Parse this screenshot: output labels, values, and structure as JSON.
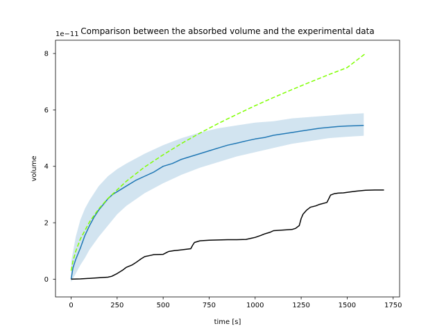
{
  "chart_data": {
    "type": "line",
    "title": "Comparison between the absorbed volume and the experimental data",
    "xlabel": "time [s]",
    "ylabel": "volume",
    "y_scale_note": "1e−11",
    "xlim": [
      -85,
      1785
    ],
    "ylim": [
      -0.63,
      8.47
    ],
    "x_ticks": [
      0,
      250,
      500,
      750,
      1000,
      1250,
      1500,
      1750
    ],
    "y_ticks": [
      0,
      2,
      4,
      6,
      8
    ],
    "grid": false,
    "colors": {
      "model": "#1f77b4",
      "band": "#1f77b4",
      "fit": "#7fff00",
      "experiment": "#000000"
    },
    "series": [
      {
        "kind": "band",
        "x": [
          0,
          25,
          50,
          75,
          100,
          150,
          200,
          250,
          300,
          400,
          500,
          600,
          700,
          800,
          900,
          1000,
          1100,
          1200,
          1300,
          1400,
          1500,
          1590
        ],
        "lower": [
          -0.1,
          0.2,
          0.5,
          0.75,
          1.05,
          1.5,
          1.9,
          2.3,
          2.6,
          3.05,
          3.4,
          3.7,
          3.95,
          4.15,
          4.35,
          4.5,
          4.65,
          4.8,
          4.9,
          5.0,
          5.05,
          5.08
        ],
        "upper": [
          0.6,
          1.5,
          2.1,
          2.5,
          2.8,
          3.3,
          3.65,
          3.9,
          4.1,
          4.45,
          4.75,
          5.0,
          5.2,
          5.35,
          5.45,
          5.55,
          5.6,
          5.7,
          5.75,
          5.8,
          5.85,
          5.88
        ]
      },
      {
        "kind": "line",
        "x": [
          0,
          10,
          25,
          50,
          75,
          100,
          125,
          150,
          175,
          200,
          225,
          250,
          300,
          350,
          400,
          450,
          500,
          550,
          600,
          650,
          700,
          750,
          800,
          850,
          900,
          950,
          1000,
          1050,
          1100,
          1150,
          1200,
          1250,
          1300,
          1350,
          1400,
          1450,
          1500,
          1550,
          1590
        ],
        "y": [
          0,
          0.4,
          0.7,
          1.1,
          1.55,
          1.9,
          2.2,
          2.45,
          2.65,
          2.85,
          3.0,
          3.1,
          3.3,
          3.5,
          3.65,
          3.8,
          4.0,
          4.1,
          4.25,
          4.35,
          4.45,
          4.55,
          4.65,
          4.75,
          4.82,
          4.9,
          4.97,
          5.02,
          5.1,
          5.15,
          5.2,
          5.25,
          5.3,
          5.35,
          5.38,
          5.41,
          5.43,
          5.44,
          5.45
        ]
      },
      {
        "kind": "dashed",
        "x": [
          0,
          10,
          25,
          50,
          100,
          150,
          200,
          300,
          400,
          500,
          600,
          700,
          800,
          900,
          1000,
          1100,
          1200,
          1300,
          1400,
          1500,
          1600
        ],
        "y": [
          0.3,
          0.64,
          0.99,
          1.42,
          2.03,
          2.49,
          2.86,
          3.47,
          3.98,
          4.41,
          4.81,
          5.18,
          5.52,
          5.84,
          6.15,
          6.44,
          6.72,
          6.99,
          7.25,
          7.5,
          8.0
        ]
      },
      {
        "kind": "line",
        "x": [
          0,
          50,
          100,
          150,
          200,
          220,
          250,
          280,
          300,
          330,
          350,
          380,
          400,
          430,
          450,
          500,
          520,
          530,
          560,
          600,
          650,
          660,
          670,
          690,
          700,
          720,
          750,
          800,
          850,
          900,
          950,
          980,
          1000,
          1030,
          1050,
          1080,
          1100,
          1150,
          1200,
          1220,
          1240,
          1250,
          1260,
          1280,
          1300,
          1330,
          1350,
          1390,
          1400,
          1410,
          1430,
          1450,
          1480,
          1500,
          1550,
          1600,
          1650,
          1700
        ],
        "y": [
          0,
          0.01,
          0.03,
          0.05,
          0.07,
          0.1,
          0.2,
          0.32,
          0.42,
          0.5,
          0.58,
          0.72,
          0.8,
          0.84,
          0.87,
          0.88,
          0.95,
          0.98,
          1.01,
          1.04,
          1.08,
          1.2,
          1.3,
          1.34,
          1.36,
          1.37,
          1.38,
          1.39,
          1.4,
          1.4,
          1.41,
          1.45,
          1.48,
          1.55,
          1.6,
          1.66,
          1.72,
          1.74,
          1.76,
          1.8,
          1.9,
          2.15,
          2.3,
          2.45,
          2.55,
          2.6,
          2.65,
          2.72,
          2.85,
          2.98,
          3.03,
          3.05,
          3.06,
          3.08,
          3.12,
          3.15,
          3.16,
          3.16
        ]
      }
    ]
  }
}
